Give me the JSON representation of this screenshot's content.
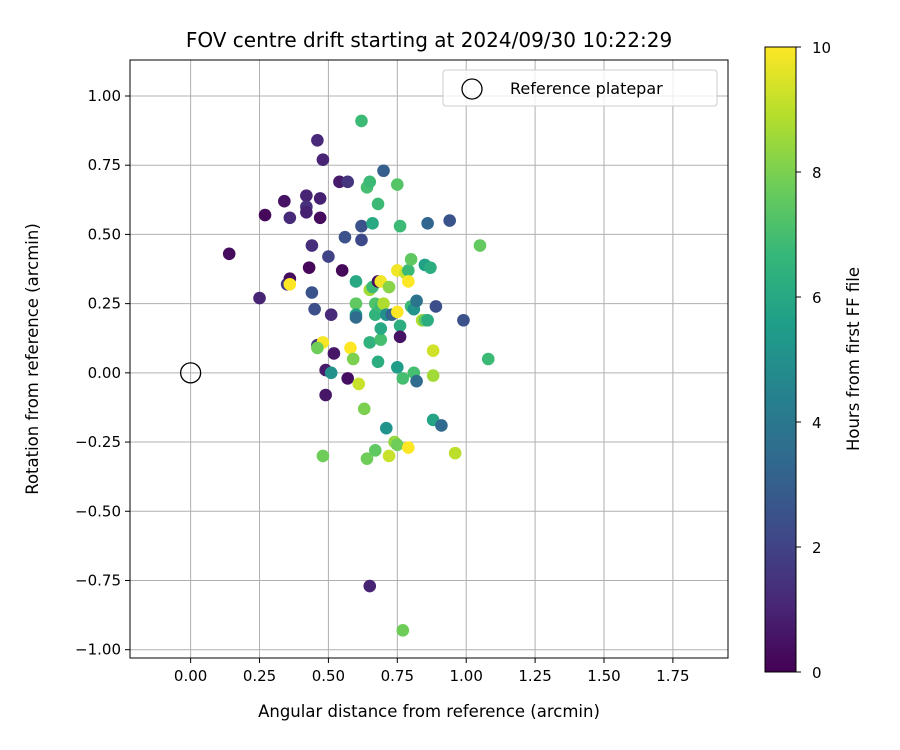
{
  "chart_data": {
    "type": "scatter",
    "title": "FOV centre drift starting at 2024/09/30 10:22:29",
    "xlabel": "Angular distance from reference (arcmin)",
    "ylabel": "Rotation from reference (arcmin)",
    "xlim": [
      -0.22,
      1.95
    ],
    "ylim": [
      -1.03,
      1.13
    ],
    "xticks": [
      0.0,
      0.25,
      0.5,
      0.75,
      1.0,
      1.25,
      1.5,
      1.75
    ],
    "xtick_labels": [
      "0.00",
      "0.25",
      "0.50",
      "0.75",
      "1.00",
      "1.25",
      "1.50",
      "1.75"
    ],
    "yticks": [
      -1.0,
      -0.75,
      -0.5,
      -0.25,
      0.0,
      0.25,
      0.5,
      0.75,
      1.0
    ],
    "ytick_labels": [
      "−1.00",
      "−0.75",
      "−0.50",
      "−0.25",
      "0.00",
      "0.25",
      "0.50",
      "0.75",
      "1.00"
    ],
    "grid": true,
    "legend": {
      "placement": "top-right",
      "entries": [
        "Reference platepar"
      ]
    },
    "reference_point": {
      "label": "Reference platepar",
      "x": 0.0,
      "y": 0.0,
      "marker": "open-circle"
    },
    "colorbar": {
      "label": "Hours from first FF file",
      "min": 0,
      "max": 10,
      "ticks": [
        0,
        2,
        4,
        6,
        8,
        10
      ],
      "tick_labels": [
        "0",
        "2",
        "4",
        "6",
        "8",
        "10"
      ],
      "colormap": "viridis"
    },
    "points": [
      {
        "x": 0.14,
        "y": 0.43,
        "c": 0.3
      },
      {
        "x": 0.25,
        "y": 0.27,
        "c": 1.0
      },
      {
        "x": 0.27,
        "y": 0.57,
        "c": 0.2
      },
      {
        "x": 0.34,
        "y": 0.62,
        "c": 0.5
      },
      {
        "x": 0.35,
        "y": 0.32,
        "c": 1.8
      },
      {
        "x": 0.36,
        "y": 0.56,
        "c": 1.2
      },
      {
        "x": 0.36,
        "y": 0.34,
        "c": 0.3
      },
      {
        "x": 0.36,
        "y": 0.32,
        "c": 10.0
      },
      {
        "x": 0.42,
        "y": 0.64,
        "c": 1.0
      },
      {
        "x": 0.42,
        "y": 0.6,
        "c": 1.4
      },
      {
        "x": 0.42,
        "y": 0.58,
        "c": 0.9
      },
      {
        "x": 0.43,
        "y": 0.38,
        "c": 0.2
      },
      {
        "x": 0.44,
        "y": 0.29,
        "c": 2.6
      },
      {
        "x": 0.44,
        "y": 0.46,
        "c": 1.3
      },
      {
        "x": 0.45,
        "y": 0.23,
        "c": 2.4
      },
      {
        "x": 0.46,
        "y": 0.84,
        "c": 1.1
      },
      {
        "x": 0.46,
        "y": 0.1,
        "c": 1.5
      },
      {
        "x": 0.47,
        "y": 0.56,
        "c": 0.3
      },
      {
        "x": 0.47,
        "y": 0.63,
        "c": 0.9
      },
      {
        "x": 0.48,
        "y": 0.77,
        "c": 1.0
      },
      {
        "x": 0.48,
        "y": 0.11,
        "c": 9.9
      },
      {
        "x": 0.46,
        "y": 0.09,
        "c": 7.8
      },
      {
        "x": 0.48,
        "y": -0.3,
        "c": 7.8
      },
      {
        "x": 0.49,
        "y": 0.01,
        "c": 0.7
      },
      {
        "x": 0.49,
        "y": -0.08,
        "c": 0.6
      },
      {
        "x": 0.5,
        "y": 0.42,
        "c": 2.0
      },
      {
        "x": 0.51,
        "y": 0.21,
        "c": 1.2
      },
      {
        "x": 0.51,
        "y": 0.0,
        "c": 5.0
      },
      {
        "x": 0.52,
        "y": 0.07,
        "c": 0.6
      },
      {
        "x": 0.54,
        "y": 0.69,
        "c": 0.7
      },
      {
        "x": 0.55,
        "y": 0.37,
        "c": 0.2
      },
      {
        "x": 0.56,
        "y": 0.49,
        "c": 2.5
      },
      {
        "x": 0.57,
        "y": 0.69,
        "c": 1.5
      },
      {
        "x": 0.57,
        "y": -0.02,
        "c": 0.4
      },
      {
        "x": 0.58,
        "y": 0.09,
        "c": 10.0
      },
      {
        "x": 0.59,
        "y": 0.05,
        "c": 8.0
      },
      {
        "x": 0.6,
        "y": 0.33,
        "c": 6.0
      },
      {
        "x": 0.6,
        "y": 0.25,
        "c": 7.5
      },
      {
        "x": 0.6,
        "y": 0.21,
        "c": 5.5
      },
      {
        "x": 0.6,
        "y": 0.2,
        "c": 3.5
      },
      {
        "x": 0.61,
        "y": -0.04,
        "c": 9.2
      },
      {
        "x": 0.62,
        "y": 0.91,
        "c": 6.8
      },
      {
        "x": 0.62,
        "y": 0.53,
        "c": 2.5
      },
      {
        "x": 0.62,
        "y": 0.48,
        "c": 2.2
      },
      {
        "x": 0.63,
        "y": -0.13,
        "c": 8.0
      },
      {
        "x": 0.64,
        "y": 0.67,
        "c": 7.0
      },
      {
        "x": 0.64,
        "y": -0.31,
        "c": 7.8
      },
      {
        "x": 0.65,
        "y": 0.69,
        "c": 6.8
      },
      {
        "x": 0.65,
        "y": 0.3,
        "c": 8.6
      },
      {
        "x": 0.65,
        "y": 0.11,
        "c": 6.4
      },
      {
        "x": 0.65,
        "y": -0.77,
        "c": 1.0
      },
      {
        "x": 0.66,
        "y": 0.54,
        "c": 6.0
      },
      {
        "x": 0.66,
        "y": 0.31,
        "c": 6.8
      },
      {
        "x": 0.67,
        "y": 0.25,
        "c": 7.2
      },
      {
        "x": 0.67,
        "y": 0.21,
        "c": 6.5
      },
      {
        "x": 0.67,
        "y": -0.28,
        "c": 7.5
      },
      {
        "x": 0.68,
        "y": 0.61,
        "c": 6.8
      },
      {
        "x": 0.68,
        "y": 0.33,
        "c": 0.3
      },
      {
        "x": 0.68,
        "y": 0.04,
        "c": 6.2
      },
      {
        "x": 0.69,
        "y": 0.33,
        "c": 9.8
      },
      {
        "x": 0.69,
        "y": 0.24,
        "c": 6.8
      },
      {
        "x": 0.69,
        "y": 0.12,
        "c": 7.0
      },
      {
        "x": 0.69,
        "y": 0.16,
        "c": 6.0
      },
      {
        "x": 0.7,
        "y": 0.73,
        "c": 3.0
      },
      {
        "x": 0.7,
        "y": 0.25,
        "c": 8.8
      },
      {
        "x": 0.71,
        "y": 0.21,
        "c": 5.0
      },
      {
        "x": 0.71,
        "y": -0.2,
        "c": 5.2
      },
      {
        "x": 0.72,
        "y": -0.3,
        "c": 9.2
      },
      {
        "x": 0.72,
        "y": 0.31,
        "c": 8.2
      },
      {
        "x": 0.73,
        "y": 0.21,
        "c": 3.2
      },
      {
        "x": 0.74,
        "y": -0.25,
        "c": 8.4
      },
      {
        "x": 0.75,
        "y": 0.68,
        "c": 7.3
      },
      {
        "x": 0.75,
        "y": 0.37,
        "c": 9.8
      },
      {
        "x": 0.75,
        "y": 0.22,
        "c": 10.0
      },
      {
        "x": 0.75,
        "y": 0.02,
        "c": 5.5
      },
      {
        "x": 0.75,
        "y": -0.26,
        "c": 7.8
      },
      {
        "x": 0.76,
        "y": 0.53,
        "c": 6.8
      },
      {
        "x": 0.76,
        "y": 0.17,
        "c": 6.2
      },
      {
        "x": 0.76,
        "y": 0.13,
        "c": 0.5
      },
      {
        "x": 0.77,
        "y": -0.02,
        "c": 7.0
      },
      {
        "x": 0.77,
        "y": -0.93,
        "c": 7.8
      },
      {
        "x": 0.78,
        "y": 0.36,
        "c": 9.2
      },
      {
        "x": 0.79,
        "y": 0.37,
        "c": 6.8
      },
      {
        "x": 0.79,
        "y": 0.33,
        "c": 10.0
      },
      {
        "x": 0.79,
        "y": -0.27,
        "c": 10.0
      },
      {
        "x": 0.8,
        "y": 0.41,
        "c": 7.5
      },
      {
        "x": 0.8,
        "y": 0.24,
        "c": 6.8
      },
      {
        "x": 0.81,
        "y": 0.23,
        "c": 5.2
      },
      {
        "x": 0.81,
        "y": 0.0,
        "c": 7.0
      },
      {
        "x": 0.82,
        "y": 0.26,
        "c": 3.8
      },
      {
        "x": 0.82,
        "y": -0.03,
        "c": 3.5
      },
      {
        "x": 0.84,
        "y": 0.19,
        "c": 8.8
      },
      {
        "x": 0.85,
        "y": 0.19,
        "c": 7.5
      },
      {
        "x": 0.85,
        "y": 0.39,
        "c": 5.7
      },
      {
        "x": 0.86,
        "y": 0.54,
        "c": 3.3
      },
      {
        "x": 0.86,
        "y": 0.19,
        "c": 6.2
      },
      {
        "x": 0.87,
        "y": 0.38,
        "c": 6.2
      },
      {
        "x": 0.88,
        "y": -0.01,
        "c": 8.6
      },
      {
        "x": 0.88,
        "y": 0.08,
        "c": 9.3
      },
      {
        "x": 0.88,
        "y": -0.17,
        "c": 5.8
      },
      {
        "x": 0.89,
        "y": 0.24,
        "c": 2.4
      },
      {
        "x": 0.91,
        "y": -0.19,
        "c": 3.4
      },
      {
        "x": 0.94,
        "y": 0.55,
        "c": 2.6
      },
      {
        "x": 0.96,
        "y": -0.29,
        "c": 9.0
      },
      {
        "x": 0.99,
        "y": 0.19,
        "c": 2.5
      },
      {
        "x": 1.05,
        "y": 0.46,
        "c": 7.6
      },
      {
        "x": 1.08,
        "y": 0.05,
        "c": 6.8
      }
    ]
  }
}
